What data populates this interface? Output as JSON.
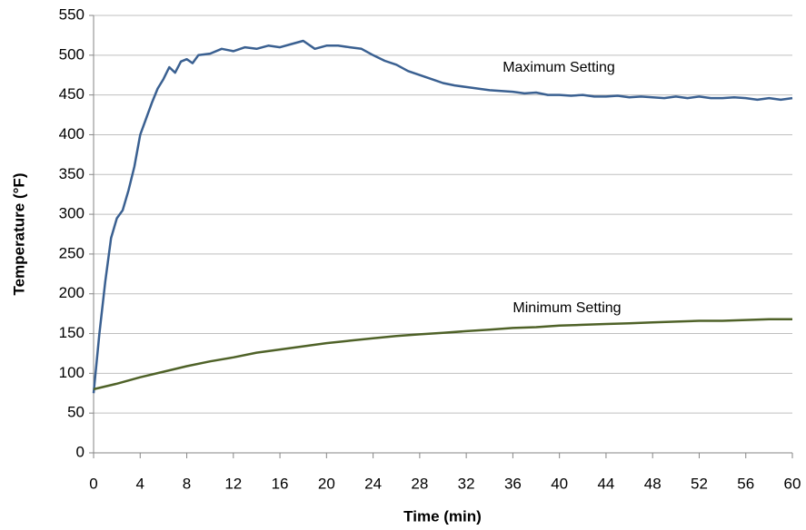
{
  "chart_data": {
    "type": "line",
    "x_label": "Time (min)",
    "y_label": "Temperature (°F)",
    "xlim": [
      0,
      60
    ],
    "xticks": [
      0,
      4,
      8,
      12,
      16,
      20,
      24,
      28,
      32,
      36,
      40,
      44,
      48,
      52,
      56,
      60
    ],
    "ylim": [
      0,
      550
    ],
    "yticks": [
      0,
      50,
      100,
      150,
      200,
      250,
      300,
      350,
      400,
      450,
      500,
      550
    ],
    "grid": true,
    "series": [
      {
        "name": "Maximum Setting",
        "color": "#3a6091",
        "x": [
          0,
          0.5,
          1,
          1.5,
          2,
          2.5,
          3,
          3.5,
          4,
          4.5,
          5,
          5.5,
          6,
          6.5,
          7,
          7.5,
          8,
          8.5,
          9,
          10,
          11,
          12,
          13,
          14,
          15,
          16,
          17,
          18,
          19,
          20,
          21,
          22,
          23,
          24,
          25,
          26,
          27,
          28,
          29,
          30,
          31,
          32,
          33,
          34,
          35,
          36,
          37,
          38,
          39,
          40,
          41,
          42,
          43,
          44,
          45,
          46,
          47,
          48,
          49,
          50,
          51,
          52,
          53,
          54,
          55,
          56,
          57,
          58,
          59,
          60
        ],
        "values": [
          75,
          150,
          215,
          270,
          295,
          305,
          330,
          360,
          400,
          420,
          440,
          458,
          470,
          485,
          478,
          492,
          495,
          490,
          500,
          502,
          508,
          505,
          510,
          508,
          512,
          510,
          514,
          518,
          508,
          512,
          512,
          510,
          508,
          500,
          493,
          488,
          480,
          475,
          470,
          465,
          462,
          460,
          458,
          456,
          455,
          454,
          452,
          453,
          450,
          450,
          449,
          450,
          448,
          448,
          449,
          447,
          448,
          447,
          446,
          448,
          446,
          448,
          446,
          446,
          447,
          446,
          444,
          446,
          444,
          446
        ]
      },
      {
        "name": "Minimum Setting",
        "color": "#4f6228",
        "x": [
          0,
          2,
          4,
          6,
          8,
          10,
          12,
          14,
          16,
          18,
          20,
          22,
          24,
          26,
          28,
          30,
          32,
          34,
          36,
          38,
          40,
          42,
          44,
          46,
          48,
          50,
          52,
          54,
          56,
          58,
          60
        ],
        "values": [
          80,
          87,
          95,
          102,
          109,
          115,
          120,
          126,
          130,
          134,
          138,
          141,
          144,
          147,
          149,
          151,
          153,
          155,
          157,
          158,
          160,
          161,
          162,
          163,
          164,
          165,
          166,
          166,
          167,
          168,
          168
        ]
      }
    ]
  }
}
